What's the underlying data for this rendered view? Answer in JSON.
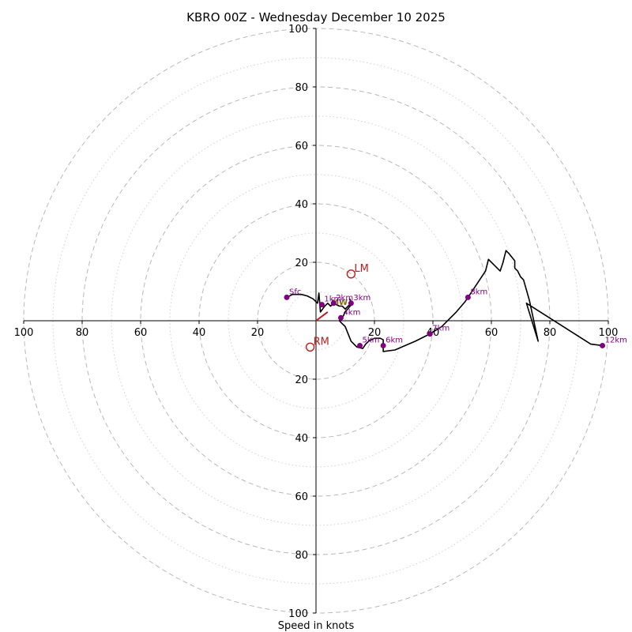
{
  "chart_data": {
    "type": "hodograph",
    "title": "KBRO 00Z - Wednesday December 10 2025",
    "xlabel": "Speed in knots",
    "units": "knots",
    "range": [
      -100,
      100
    ],
    "rings": [
      20,
      40,
      60,
      80,
      100
    ],
    "minor_rings": [
      10,
      30,
      50,
      70,
      90
    ],
    "x_tick_labels": [
      "100",
      "80",
      "60",
      "40",
      "20",
      "20",
      "40",
      "60",
      "80",
      "100"
    ],
    "y_tick_labels": [
      "100",
      "80",
      "60",
      "40",
      "20",
      "20",
      "40",
      "60",
      "80",
      "100"
    ],
    "profile": [
      [
        -10,
        8
      ],
      [
        -8,
        9
      ],
      [
        -5,
        9
      ],
      [
        -3,
        8.5
      ],
      [
        -1,
        7.5
      ],
      [
        0,
        6.5
      ],
      [
        0.5,
        6
      ],
      [
        1,
        9.5
      ],
      [
        1.5,
        3
      ],
      [
        3,
        5
      ],
      [
        4,
        6
      ],
      [
        5,
        5
      ],
      [
        6,
        6
      ],
      [
        7,
        5.5
      ],
      [
        8,
        5
      ],
      [
        9,
        5
      ],
      [
        10,
        4
      ],
      [
        11,
        5
      ],
      [
        12,
        6
      ],
      [
        11.5,
        7.5
      ],
      [
        12,
        6.5
      ],
      [
        12.5,
        6
      ],
      [
        10,
        3
      ],
      [
        9,
        1
      ],
      [
        8,
        0
      ],
      [
        8.5,
        -0.5
      ],
      [
        10,
        -2
      ],
      [
        12,
        -7
      ],
      [
        14,
        -9
      ],
      [
        16,
        -9.5
      ],
      [
        17,
        -8
      ],
      [
        18,
        -7
      ],
      [
        20,
        -6
      ],
      [
        22,
        -6
      ],
      [
        23,
        -6.5
      ],
      [
        23,
        -8.5
      ],
      [
        23,
        -10.5
      ],
      [
        27,
        -10
      ],
      [
        34,
        -7
      ],
      [
        39,
        -4.5
      ],
      [
        43,
        -2
      ],
      [
        48,
        3
      ],
      [
        51,
        6.5
      ],
      [
        52,
        8
      ],
      [
        54,
        11
      ],
      [
        56,
        14
      ],
      [
        58,
        17
      ],
      [
        59,
        21
      ],
      [
        63,
        17
      ],
      [
        64,
        20
      ],
      [
        64.5,
        22
      ],
      [
        65,
        24
      ],
      [
        66,
        23
      ],
      [
        68,
        20.5
      ],
      [
        68,
        18
      ],
      [
        69,
        17
      ],
      [
        70,
        15
      ],
      [
        71,
        14
      ],
      [
        73,
        7
      ],
      [
        76,
        -7
      ],
      [
        72,
        6
      ],
      [
        94,
        -8
      ],
      [
        98,
        -8.5
      ]
    ],
    "height_markers": [
      {
        "label": "Sfc",
        "u": -10,
        "v": 8
      },
      {
        "label": "1km",
        "u": 2,
        "v": 5.5
      },
      {
        "label": "2km",
        "u": 6,
        "v": 6
      },
      {
        "label": "3km",
        "u": 12,
        "v": 6
      },
      {
        "label": "4km",
        "u": 8.5,
        "v": 1
      },
      {
        "label": "5km",
        "u": 15,
        "v": -8.5
      },
      {
        "label": "6km",
        "u": 23,
        "v": -8.5
      },
      {
        "label": "7km",
        "u": 39,
        "v": -4.5
      },
      {
        "label": "8km",
        "u": 52,
        "v": 8
      },
      {
        "label": "12km",
        "u": 98,
        "v": -8.5
      }
    ],
    "storm_motions": [
      {
        "label": "LM",
        "u": 12,
        "v": 16
      },
      {
        "label": "RM",
        "u": -2,
        "v": -9
      }
    ],
    "motion_vector": {
      "from": [
        0,
        0
      ],
      "to": [
        4,
        3
      ]
    },
    "mean_wind": {
      "label": "MW",
      "u": 8,
      "v": 6.5
    },
    "colors": {
      "profile": "#000000",
      "marker": "#800080",
      "storm_motion": "#bb1e1e",
      "grid": "#b8b8b8",
      "mean_wind": "#8b6914"
    }
  }
}
